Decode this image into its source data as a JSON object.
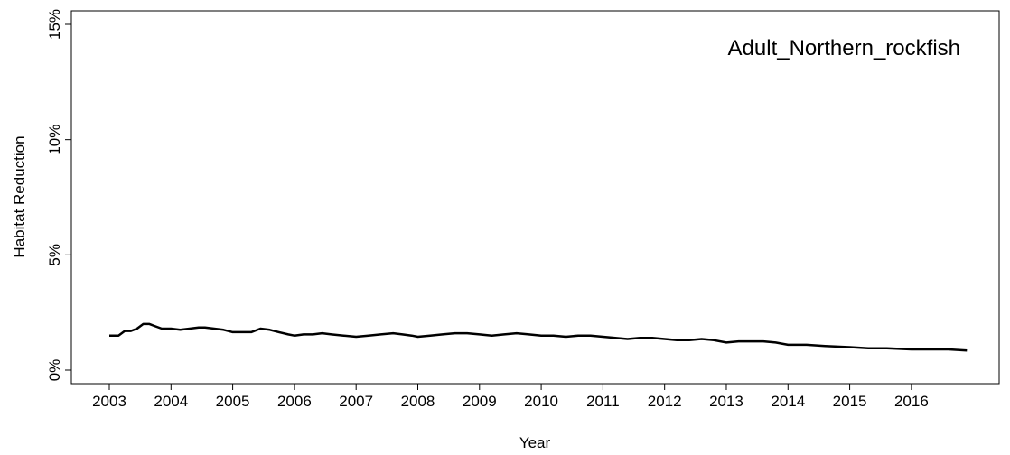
{
  "chart_data": {
    "type": "line",
    "title": "",
    "annotation": "Adult_Northern_rockfish",
    "xlabel": "Year",
    "ylabel": "Habitat Reduction",
    "xlim": [
      2003,
      2017.1
    ],
    "ylim": [
      0,
      15
    ],
    "grid": false,
    "legend": "none",
    "line_color": "#000000",
    "x_ticks": [
      2003,
      2004,
      2005,
      2006,
      2007,
      2008,
      2009,
      2010,
      2011,
      2012,
      2013,
      2014,
      2015,
      2016
    ],
    "x_tick_labels": [
      "2003",
      "2004",
      "2005",
      "2006",
      "2007",
      "2008",
      "2009",
      "2010",
      "2011",
      "2012",
      "2013",
      "2014",
      "2015",
      "2016"
    ],
    "y_ticks": [
      0,
      5,
      10,
      15
    ],
    "y_tick_labels": [
      "0%",
      "5%",
      "10%",
      "15%"
    ],
    "series": [
      {
        "x": [
          2003.0,
          2003.15,
          2003.25,
          2003.35,
          2003.45,
          2003.55,
          2003.65,
          2003.75,
          2003.85,
          2004.0,
          2004.15,
          2004.3,
          2004.45,
          2004.55,
          2004.7,
          2004.85,
          2005.0,
          2005.15,
          2005.3,
          2005.45,
          2005.6,
          2005.75,
          2005.9,
          2006.0,
          2006.15,
          2006.3,
          2006.45,
          2006.6,
          2006.8,
          2007.0,
          2007.2,
          2007.4,
          2007.6,
          2007.75,
          2007.9,
          2008.0,
          2008.2,
          2008.4,
          2008.6,
          2008.8,
          2009.0,
          2009.2,
          2009.4,
          2009.6,
          2009.8,
          2010.0,
          2010.2,
          2010.4,
          2010.6,
          2010.8,
          2011.0,
          2011.2,
          2011.4,
          2011.6,
          2011.8,
          2012.0,
          2012.2,
          2012.4,
          2012.6,
          2012.8,
          2013.0,
          2013.2,
          2013.4,
          2013.6,
          2013.8,
          2014.0,
          2014.3,
          2014.6,
          2015.0,
          2015.3,
          2015.6,
          2016.0,
          2016.3,
          2016.6,
          2016.9
        ],
        "values": [
          1.5,
          1.5,
          1.7,
          1.7,
          1.8,
          2.0,
          2.0,
          1.9,
          1.8,
          1.8,
          1.75,
          1.8,
          1.85,
          1.85,
          1.8,
          1.75,
          1.65,
          1.65,
          1.65,
          1.8,
          1.75,
          1.65,
          1.55,
          1.5,
          1.55,
          1.55,
          1.6,
          1.55,
          1.5,
          1.45,
          1.5,
          1.55,
          1.6,
          1.55,
          1.5,
          1.45,
          1.5,
          1.55,
          1.6,
          1.6,
          1.55,
          1.5,
          1.55,
          1.6,
          1.55,
          1.5,
          1.5,
          1.45,
          1.5,
          1.5,
          1.45,
          1.4,
          1.35,
          1.4,
          1.4,
          1.35,
          1.3,
          1.3,
          1.35,
          1.3,
          1.2,
          1.25,
          1.25,
          1.25,
          1.2,
          1.1,
          1.1,
          1.05,
          1.0,
          0.95,
          0.95,
          0.9,
          0.9,
          0.9,
          0.85
        ]
      }
    ]
  }
}
